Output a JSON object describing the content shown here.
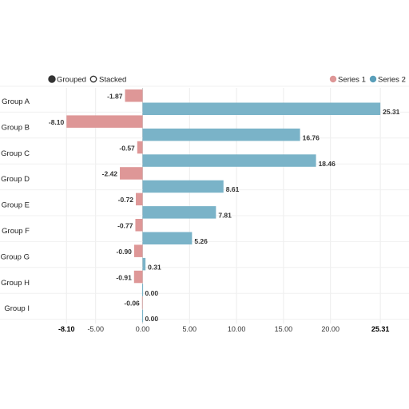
{
  "controls": {
    "grouped_label": "Grouped",
    "stacked_label": "Stacked",
    "selected": "grouped"
  },
  "legend": [
    {
      "name": "Series 1",
      "color": "#de9797"
    },
    {
      "name": "Series 2",
      "color": "#7ab3c8"
    }
  ],
  "chart_data": {
    "type": "bar",
    "orientation": "horizontal",
    "mode": "grouped",
    "categories": [
      "Group A",
      "Group B",
      "Group C",
      "Group D",
      "Group E",
      "Group F",
      "Group G",
      "Group H",
      "Group I"
    ],
    "series": [
      {
        "name": "Series 1",
        "color": "#de9797",
        "values": [
          -1.87,
          -8.1,
          -0.57,
          -2.42,
          -0.72,
          -0.77,
          -0.9,
          -0.91,
          -0.06
        ],
        "labels": [
          "-1.87",
          "-8.10",
          "-0.57",
          "-2.42",
          "-0.72",
          "-0.77",
          "-0.90",
          "-0.91",
          "-0.06"
        ]
      },
      {
        "name": "Series 2",
        "color": "#7ab3c8",
        "values": [
          25.31,
          16.76,
          18.46,
          8.61,
          7.81,
          5.26,
          0.31,
          0.0,
          0.0
        ],
        "labels": [
          "25.31",
          "16.76",
          "18.46",
          "8.61",
          "7.81",
          "5.26",
          "0.31",
          "0.00",
          "0.00"
        ]
      }
    ],
    "xlim": [
      -8.1,
      25.31
    ],
    "x_ticks": [
      {
        "value": -8.1,
        "label": "-8.10",
        "bold": true
      },
      {
        "value": -5,
        "label": "-5.00",
        "bold": false
      },
      {
        "value": 0,
        "label": "0.00",
        "bold": false
      },
      {
        "value": 5,
        "label": "5.00",
        "bold": false
      },
      {
        "value": 10,
        "label": "10.00",
        "bold": false
      },
      {
        "value": 15,
        "label": "15.00",
        "bold": false
      },
      {
        "value": 20,
        "label": "20.00",
        "bold": false
      },
      {
        "value": 25.31,
        "label": "25.31",
        "bold": true
      }
    ],
    "grid": true,
    "legend_position": "top-right"
  }
}
